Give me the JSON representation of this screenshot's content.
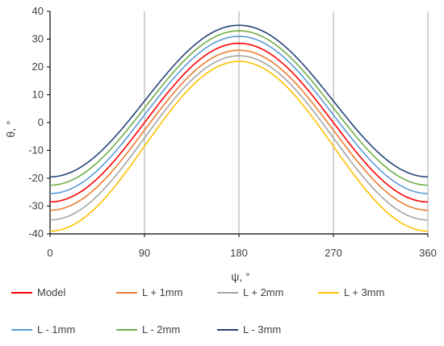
{
  "chart_data": {
    "type": "line",
    "title": "",
    "xlabel": "ψ, °",
    "ylabel": "θ, °",
    "xlim": [
      0,
      360
    ],
    "ylim": [
      -40,
      40
    ],
    "xticks": [
      0,
      90,
      180,
      270,
      360
    ],
    "yticks": [
      -40,
      -30,
      -20,
      -10,
      0,
      10,
      20,
      30,
      40
    ],
    "grid": "vertical",
    "legend_position": "bottom",
    "series": [
      {
        "name": "Model",
        "color": "#ff0000",
        "x": [
          0,
          90,
          180,
          270,
          360
        ],
        "y": [
          -28.5,
          3.5,
          28.5,
          3.5,
          -28.5
        ]
      },
      {
        "name": "L + 1mm",
        "color": "#ed7d31",
        "x": [
          0,
          90,
          180,
          270,
          360
        ],
        "y": [
          -31.5,
          1.5,
          26.0,
          1.5,
          -31.5
        ]
      },
      {
        "name": "L + 2mm",
        "color": "#a5a5a5",
        "x": [
          0,
          90,
          180,
          270,
          360
        ],
        "y": [
          -35.0,
          -0.5,
          24.0,
          -0.5,
          -35.0
        ]
      },
      {
        "name": "L + 3mm",
        "color": "#ffc000",
        "x": [
          0,
          90,
          180,
          270,
          360
        ],
        "y": [
          -39.0,
          -3.0,
          22.0,
          -3.0,
          -39.0
        ]
      },
      {
        "name": "L - 1mm",
        "color": "#5b9bd5",
        "x": [
          0,
          90,
          180,
          270,
          360
        ],
        "y": [
          -25.5,
          6.0,
          31.0,
          6.0,
          -25.5
        ]
      },
      {
        "name": "L - 2mm",
        "color": "#70ad47",
        "x": [
          0,
          90,
          180,
          270,
          360
        ],
        "y": [
          -22.5,
          8.5,
          33.0,
          8.5,
          -22.5
        ]
      },
      {
        "name": "L - 3mm",
        "color": "#264478",
        "x": [
          0,
          90,
          180,
          270,
          360
        ],
        "y": [
          -19.5,
          11.0,
          35.0,
          11.0,
          -19.5
        ]
      }
    ]
  }
}
